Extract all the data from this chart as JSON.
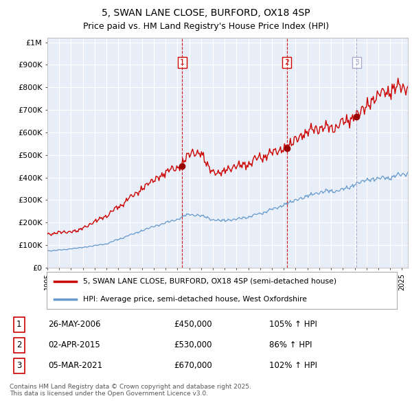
{
  "title": "5, SWAN LANE CLOSE, BURFORD, OX18 4SP",
  "subtitle": "Price paid vs. HM Land Registry's House Price Index (HPI)",
  "ylabel_ticks": [
    "£0",
    "£100K",
    "£200K",
    "£300K",
    "£400K",
    "£500K",
    "£600K",
    "£700K",
    "£800K",
    "£900K",
    "£1M"
  ],
  "ytick_values": [
    0,
    100000,
    200000,
    300000,
    400000,
    500000,
    600000,
    700000,
    800000,
    900000,
    1000000
  ],
  "xmin": 1995.0,
  "xmax": 2025.5,
  "ymin": 0,
  "ymax": 1000000,
  "sale_dates": [
    2006.4,
    2015.25,
    2021.17
  ],
  "sale_prices": [
    450000,
    530000,
    670000
  ],
  "sale_labels": [
    "1",
    "2",
    "3"
  ],
  "vline_colors": [
    "#cc0000",
    "#cc0000",
    "#aaaacc"
  ],
  "vline_styles": [
    "--",
    "--",
    "--"
  ],
  "red_line_color": "#cc0000",
  "blue_line_color": "#6699cc",
  "chart_bg_color": "#e8eef8",
  "bg_color": "#ffffff",
  "grid_color": "#ffffff",
  "legend_label_red": "5, SWAN LANE CLOSE, BURFORD, OX18 4SP (semi-detached house)",
  "legend_label_blue": "HPI: Average price, semi-detached house, West Oxfordshire",
  "table_data": [
    [
      "1",
      "26-MAY-2006",
      "£450,000",
      "105% ↑ HPI"
    ],
    [
      "2",
      "02-APR-2015",
      "£530,000",
      "86% ↑ HPI"
    ],
    [
      "3",
      "05-MAR-2021",
      "£670,000",
      "102% ↑ HPI"
    ]
  ],
  "footer": "Contains HM Land Registry data © Crown copyright and database right 2025.\nThis data is licensed under the Open Government Licence v3.0."
}
